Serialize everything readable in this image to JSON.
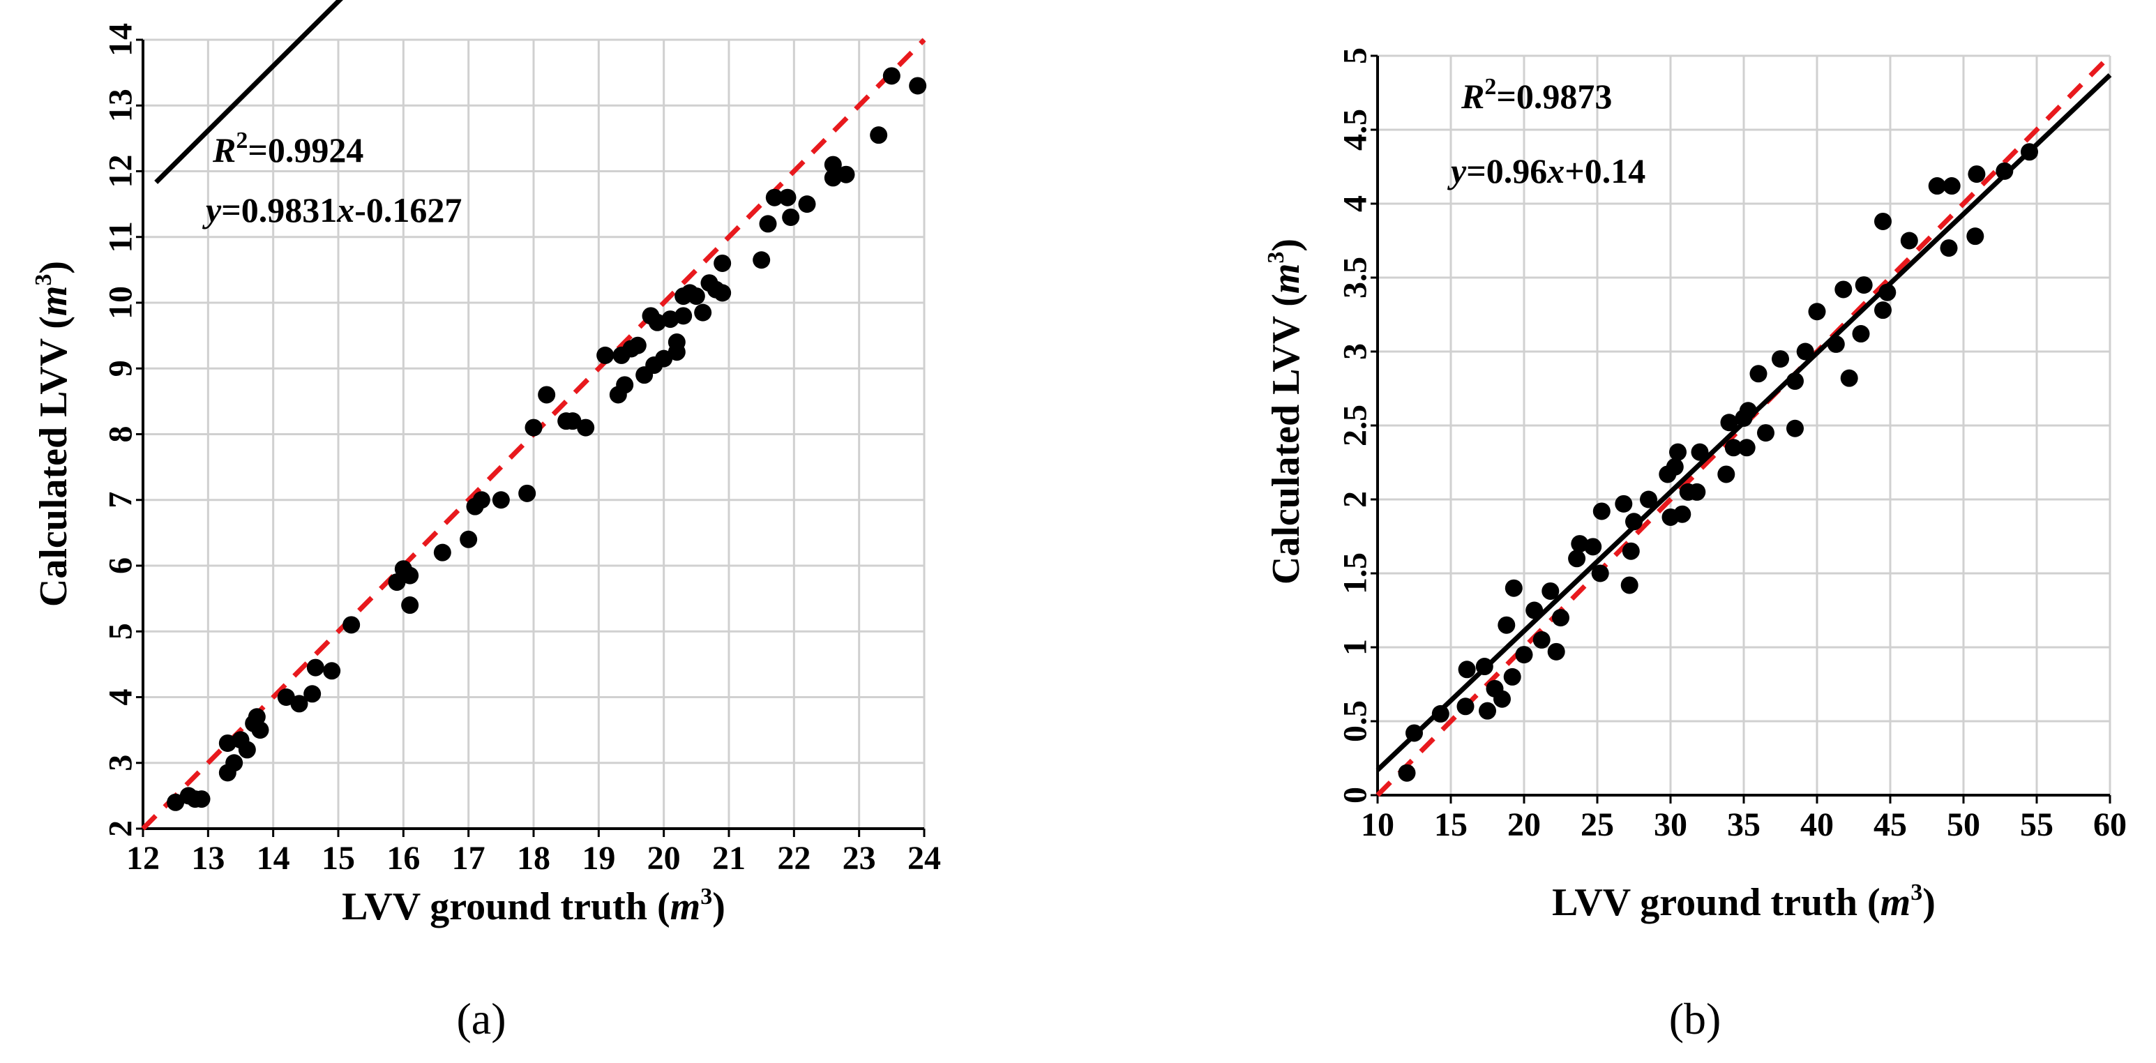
{
  "colors": {
    "points": "#000000",
    "fit_line": "#000000",
    "identity_line": "#e8191d",
    "grid": "#d0d0d0"
  },
  "chart_data": [
    {
      "id": "a",
      "type": "scatter",
      "panel_label": "(a)",
      "xlabel": "LVV ground truth",
      "ylabel": "Calculated LVV",
      "unit_base": "m",
      "unit_exp": "3",
      "xlim": [
        12,
        24
      ],
      "ylim": [
        2,
        14
      ],
      "xticks": [
        12,
        13,
        14,
        15,
        16,
        17,
        18,
        19,
        20,
        21,
        22,
        23,
        24
      ],
      "yticks": [
        2,
        3,
        4,
        5,
        6,
        7,
        8,
        9,
        10,
        11,
        12,
        13,
        14
      ],
      "grid": true,
      "annotation": {
        "r2_value": "=0.9924",
        "eq_y": "y",
        "eq_slope": "=0.9831",
        "eq_x": "x",
        "eq_intercept": "-0.1627"
      },
      "fit": {
        "slope": 0.9831,
        "intercept": -0.1627,
        "x_range": [
          12.2,
          24.0
        ]
      },
      "identity": {
        "x_range": [
          12,
          24
        ],
        "offset": -10
      },
      "points": [
        [
          12.5,
          2.4
        ],
        [
          12.7,
          2.5
        ],
        [
          12.8,
          2.45
        ],
        [
          12.9,
          2.45
        ],
        [
          13.3,
          2.85
        ],
        [
          13.3,
          3.3
        ],
        [
          13.4,
          3.0
        ],
        [
          13.5,
          3.35
        ],
        [
          13.6,
          3.2
        ],
        [
          13.7,
          3.6
        ],
        [
          13.75,
          3.7
        ],
        [
          13.8,
          3.5
        ],
        [
          14.2,
          4.0
        ],
        [
          14.4,
          3.9
        ],
        [
          14.6,
          4.05
        ],
        [
          14.65,
          4.45
        ],
        [
          14.9,
          4.4
        ],
        [
          15.2,
          5.1
        ],
        [
          15.9,
          5.75
        ],
        [
          16.0,
          5.95
        ],
        [
          16.1,
          5.85
        ],
        [
          16.1,
          5.4
        ],
        [
          16.6,
          6.2
        ],
        [
          17.0,
          6.4
        ],
        [
          17.1,
          6.9
        ],
        [
          17.2,
          7.0
        ],
        [
          17.5,
          7.0
        ],
        [
          17.9,
          7.1
        ],
        [
          18.0,
          8.1
        ],
        [
          18.2,
          8.6
        ],
        [
          18.5,
          8.2
        ],
        [
          18.6,
          8.2
        ],
        [
          18.8,
          8.1
        ],
        [
          19.1,
          9.2
        ],
        [
          19.3,
          8.6
        ],
        [
          19.35,
          9.2
        ],
        [
          19.4,
          8.75
        ],
        [
          19.5,
          9.3
        ],
        [
          19.6,
          9.35
        ],
        [
          19.7,
          8.9
        ],
        [
          19.8,
          9.8
        ],
        [
          19.85,
          9.05
        ],
        [
          19.9,
          9.7
        ],
        [
          20.0,
          9.15
        ],
        [
          20.1,
          9.75
        ],
        [
          20.2,
          9.25
        ],
        [
          20.2,
          9.4
        ],
        [
          20.3,
          10.1
        ],
        [
          20.3,
          9.8
        ],
        [
          20.4,
          10.15
        ],
        [
          20.5,
          10.1
        ],
        [
          20.6,
          9.85
        ],
        [
          20.7,
          10.3
        ],
        [
          20.8,
          10.2
        ],
        [
          20.9,
          10.6
        ],
        [
          20.9,
          10.15
        ],
        [
          21.5,
          10.65
        ],
        [
          21.6,
          11.2
        ],
        [
          21.7,
          11.6
        ],
        [
          21.9,
          11.6
        ],
        [
          21.95,
          11.3
        ],
        [
          22.2,
          11.5
        ],
        [
          22.6,
          11.9
        ],
        [
          22.6,
          12.1
        ],
        [
          22.8,
          11.95
        ],
        [
          23.3,
          12.55
        ],
        [
          23.5,
          13.45
        ],
        [
          23.9,
          13.3
        ]
      ]
    },
    {
      "id": "b",
      "type": "scatter",
      "panel_label": "(b)",
      "xlabel": "LVV ground truth",
      "ylabel": "Calculated LVV",
      "unit_base": "m",
      "unit_exp": "3",
      "xlim": [
        10,
        60
      ],
      "ylim": [
        0,
        5
      ],
      "xticks": [
        10,
        15,
        20,
        25,
        30,
        35,
        40,
        45,
        50,
        55,
        60
      ],
      "yticks": [
        "0",
        "0.5",
        "1",
        "1.5",
        "2",
        "2.5",
        "3",
        "3.5",
        "4",
        "4.5",
        "5"
      ],
      "grid": true,
      "annotation": {
        "r2_value": "=0.9873",
        "eq_y": "y",
        "eq_slope": "=0.96",
        "eq_x": "x",
        "eq_intercept": "+0.14"
      },
      "fit": {
        "type": "linear",
        "x_range": [
          10,
          60
        ],
        "y_range": [
          0.17,
          4.87
        ]
      },
      "identity": {
        "x_range": [
          10,
          60
        ],
        "y_range": [
          0,
          5
        ]
      },
      "points": [
        [
          12.0,
          0.15
        ],
        [
          12.5,
          0.42
        ],
        [
          14.3,
          0.55
        ],
        [
          16.0,
          0.6
        ],
        [
          16.1,
          0.85
        ],
        [
          17.3,
          0.87
        ],
        [
          17.5,
          0.57
        ],
        [
          18.0,
          0.72
        ],
        [
          18.5,
          0.65
        ],
        [
          18.8,
          1.15
        ],
        [
          19.2,
          0.8
        ],
        [
          19.3,
          1.4
        ],
        [
          20.0,
          0.95
        ],
        [
          20.7,
          1.25
        ],
        [
          21.2,
          1.05
        ],
        [
          21.8,
          1.38
        ],
        [
          22.2,
          0.97
        ],
        [
          22.5,
          1.2
        ],
        [
          23.6,
          1.6
        ],
        [
          23.8,
          1.7
        ],
        [
          24.7,
          1.68
        ],
        [
          25.2,
          1.5
        ],
        [
          25.3,
          1.92
        ],
        [
          26.8,
          1.97
        ],
        [
          27.2,
          1.42
        ],
        [
          27.3,
          1.65
        ],
        [
          27.5,
          1.85
        ],
        [
          28.5,
          2.0
        ],
        [
          29.8,
          2.17
        ],
        [
          30.0,
          1.88
        ],
        [
          30.3,
          2.22
        ],
        [
          30.5,
          2.32
        ],
        [
          30.8,
          1.9
        ],
        [
          31.2,
          2.05
        ],
        [
          31.8,
          2.05
        ],
        [
          32.0,
          2.32
        ],
        [
          33.8,
          2.17
        ],
        [
          34.0,
          2.52
        ],
        [
          34.3,
          2.35
        ],
        [
          35.0,
          2.55
        ],
        [
          35.2,
          2.35
        ],
        [
          35.3,
          2.6
        ],
        [
          36.0,
          2.85
        ],
        [
          36.5,
          2.45
        ],
        [
          37.5,
          2.95
        ],
        [
          38.5,
          2.48
        ],
        [
          38.5,
          2.8
        ],
        [
          39.2,
          3.0
        ],
        [
          40.0,
          3.27
        ],
        [
          41.3,
          3.05
        ],
        [
          41.8,
          3.42
        ],
        [
          42.2,
          2.82
        ],
        [
          43.0,
          3.12
        ],
        [
          43.2,
          3.45
        ],
        [
          44.5,
          3.28
        ],
        [
          44.5,
          3.88
        ],
        [
          44.8,
          3.4
        ],
        [
          46.3,
          3.75
        ],
        [
          48.2,
          4.12
        ],
        [
          49.0,
          3.7
        ],
        [
          49.2,
          4.12
        ],
        [
          50.8,
          3.78
        ],
        [
          50.9,
          4.2
        ],
        [
          52.8,
          4.22
        ],
        [
          54.5,
          4.35
        ]
      ]
    }
  ]
}
